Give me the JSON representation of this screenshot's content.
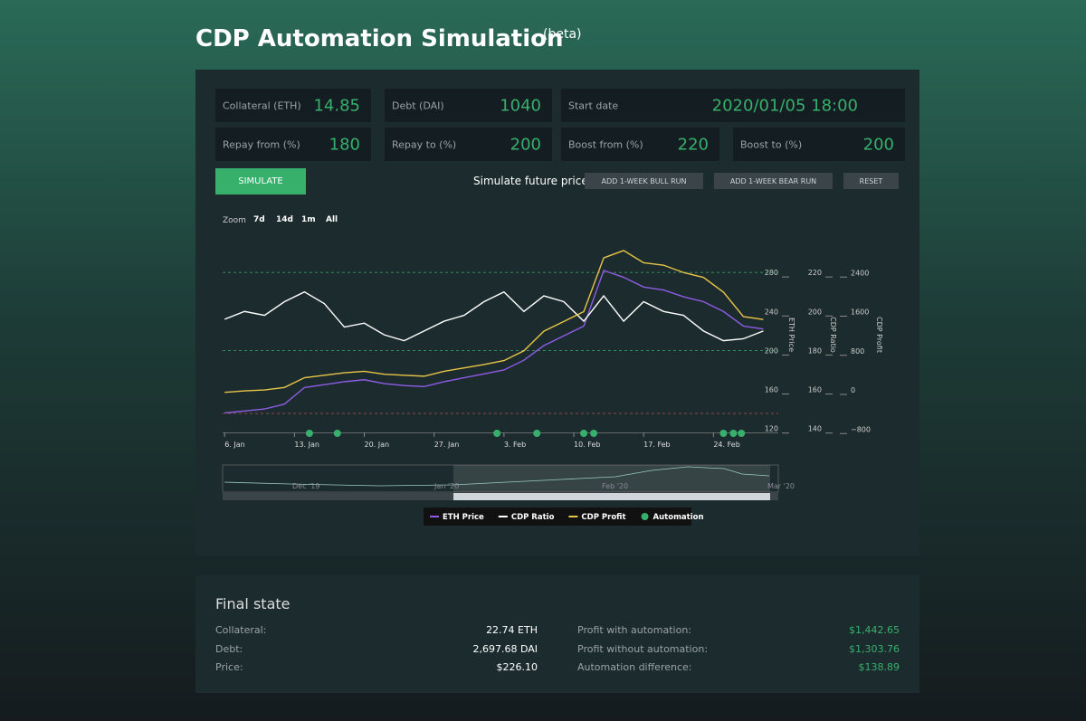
{
  "header": {
    "title": "CDP Automation Simulation",
    "badge": "(beta)"
  },
  "inputs": [
    {
      "label": "Collateral (ETH)",
      "value": 14.85
    },
    {
      "label": "Debt (DAI)",
      "value": 1040
    },
    {
      "label": "Start date",
      "value": "2020/01/05 18:00"
    },
    {
      "label": "Repay from (%)",
      "value": 180
    },
    {
      "label": "Repay to (%)",
      "value": 200
    },
    {
      "label": "Boost from (%)",
      "value": 220
    },
    {
      "label": "Boost to (%)",
      "value": 200
    }
  ],
  "simulate_button": "SIMULATE",
  "future_price": {
    "label": "Simulate future price:",
    "buttons": [
      "ADD 1-WEEK BULL RUN",
      "ADD 1-WEEK BEAR RUN",
      "RESET"
    ]
  },
  "zoom": {
    "label": "Zoom",
    "options": [
      "7d",
      "14d",
      "1m",
      "All"
    ]
  },
  "chart_data": {
    "type": "line",
    "x": [
      6,
      8,
      10,
      12,
      14,
      16,
      18,
      20,
      22,
      24,
      26,
      28,
      30,
      32,
      34,
      36,
      38,
      40,
      42,
      44,
      46,
      48,
      50,
      52,
      54,
      56,
      58,
      60
    ],
    "xlim": [
      5.8,
      61.5
    ],
    "xticks": [
      {
        "value": 6,
        "label": "6. Jan"
      },
      {
        "value": 13,
        "label": "13. Jan"
      },
      {
        "value": 20,
        "label": "20. Jan"
      },
      {
        "value": 27,
        "label": "27. Jan"
      },
      {
        "value": 34,
        "label": "3. Feb"
      },
      {
        "value": 41,
        "label": "10. Feb"
      },
      {
        "value": 48,
        "label": "17. Feb"
      },
      {
        "value": 55,
        "label": "24. Feb"
      }
    ],
    "ylabel": "ETH Price",
    "ylim": [
      116,
      320
    ],
    "yticks": [
      120,
      160,
      200,
      240,
      280
    ],
    "y2label": "CDP Ratio",
    "y2lim": [
      138,
      240
    ],
    "y2ticks": [
      140,
      160,
      180,
      200,
      220
    ],
    "y3label": "CDP Profit",
    "y3lim": [
      -869,
      3200
    ],
    "y3ticks": [
      {
        "value": -800,
        "label": "−800"
      },
      0,
      800,
      1600,
      2400
    ],
    "series": [
      {
        "name": "ETH Price",
        "color": "#8e5ce6",
        "axis": "y",
        "values": [
          136,
          138,
          140,
          145,
          162,
          165,
          168,
          170,
          166,
          164,
          163,
          168,
          172,
          176,
          180,
          190,
          205,
          215,
          225,
          282,
          275,
          265,
          262,
          255,
          250,
          240,
          225,
          222
        ]
      },
      {
        "name": "CDP Ratio",
        "color": "#ffffff",
        "axis": "y2",
        "values": [
          196,
          200,
          198,
          205,
          210,
          204,
          192,
          194,
          188,
          185,
          190,
          195,
          198,
          205,
          210,
          200,
          208,
          205,
          195,
          208,
          195,
          205,
          200,
          198,
          190,
          185,
          186,
          190
        ]
      },
      {
        "name": "CDP Profit",
        "color": "#e8c547",
        "axis": "y3",
        "values": [
          -50,
          -20,
          0,
          50,
          250,
          300,
          350,
          380,
          320,
          300,
          280,
          380,
          450,
          520,
          600,
          800,
          1200,
          1400,
          1600,
          2700,
          2850,
          2600,
          2550,
          2400,
          2300,
          2000,
          1500,
          1440
        ]
      }
    ],
    "automation": {
      "name": "Automation",
      "color": "#37b06c",
      "x": [
        14.5,
        17.3,
        33.3,
        37.3,
        42,
        43,
        56,
        57,
        57.8
      ]
    },
    "navigator_labels": [
      "Dec '19",
      "Jan '20",
      "Feb '20",
      "Mar '20"
    ]
  },
  "final_state": {
    "title": "Final state",
    "left": [
      [
        "Collateral:",
        "22.74 ETH"
      ],
      [
        "Debt:",
        "2,697.68 DAI"
      ],
      [
        "Price:",
        "$226.10"
      ]
    ],
    "right": [
      [
        "Profit with automation:",
        "$1,442.65"
      ],
      [
        "Profit without automation:",
        "$1,303.76"
      ],
      [
        "Automation difference:",
        "$138.89"
      ]
    ]
  }
}
